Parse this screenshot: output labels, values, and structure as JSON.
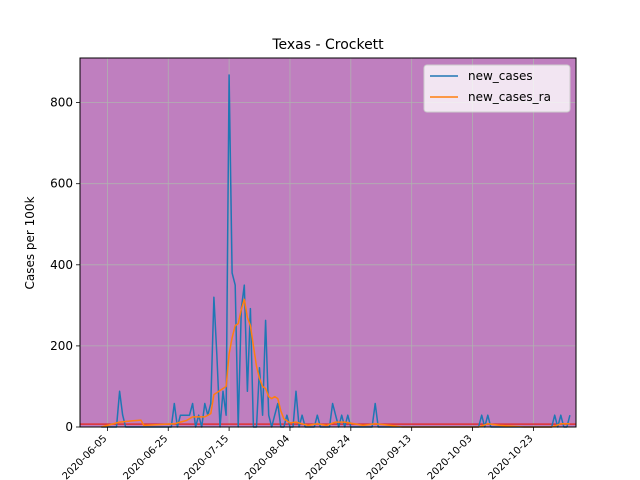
{
  "chart_data": {
    "type": "line",
    "title": "Texas - Crockett",
    "xlabel": "",
    "ylabel": "Cases per 100k",
    "xlim": [
      "2020-05-27",
      "2020-11-06"
    ],
    "ylim": [
      0,
      910
    ],
    "grid": true,
    "legend_position": "top-right",
    "background_color": "#bf7fbf",
    "threshold_line": {
      "value": 7,
      "color": "#e03030"
    },
    "x_ticks": [
      "2020-06-05",
      "2020-06-25",
      "2020-07-15",
      "2020-08-04",
      "2020-08-24",
      "2020-09-13",
      "2020-10-03",
      "2020-10-23"
    ],
    "y_ticks": [
      0,
      200,
      400,
      600,
      800
    ],
    "series": [
      {
        "name": "new_cases",
        "color": "#1f77b4",
        "points": [
          [
            "2020-06-03",
            0
          ],
          [
            "2020-06-08",
            0
          ],
          [
            "2020-06-09",
            88
          ],
          [
            "2020-06-10",
            30
          ],
          [
            "2020-06-11",
            0
          ],
          [
            "2020-06-26",
            0
          ],
          [
            "2020-06-27",
            58
          ],
          [
            "2020-06-28",
            0
          ],
          [
            "2020-06-29",
            29
          ],
          [
            "2020-06-30",
            29
          ],
          [
            "2020-07-01",
            29
          ],
          [
            "2020-07-02",
            29
          ],
          [
            "2020-07-03",
            58
          ],
          [
            "2020-07-04",
            0
          ],
          [
            "2020-07-05",
            29
          ],
          [
            "2020-07-06",
            0
          ],
          [
            "2020-07-07",
            58
          ],
          [
            "2020-07-08",
            29
          ],
          [
            "2020-07-09",
            58
          ],
          [
            "2020-07-10",
            320
          ],
          [
            "2020-07-11",
            175
          ],
          [
            "2020-07-12",
            0
          ],
          [
            "2020-07-13",
            88
          ],
          [
            "2020-07-14",
            29
          ],
          [
            "2020-07-15",
            868
          ],
          [
            "2020-07-16",
            380
          ],
          [
            "2020-07-17",
            350
          ],
          [
            "2020-07-18",
            0
          ],
          [
            "2020-07-19",
            292
          ],
          [
            "2020-07-20",
            350
          ],
          [
            "2020-07-21",
            88
          ],
          [
            "2020-07-22",
            292
          ],
          [
            "2020-07-23",
            0
          ],
          [
            "2020-07-24",
            0
          ],
          [
            "2020-07-25",
            146
          ],
          [
            "2020-07-26",
            29
          ],
          [
            "2020-07-27",
            263
          ],
          [
            "2020-07-28",
            29
          ],
          [
            "2020-07-29",
            0
          ],
          [
            "2020-07-30",
            29
          ],
          [
            "2020-07-31",
            58
          ],
          [
            "2020-08-01",
            0
          ],
          [
            "2020-08-02",
            0
          ],
          [
            "2020-08-03",
            29
          ],
          [
            "2020-08-04",
            0
          ],
          [
            "2020-08-05",
            0
          ],
          [
            "2020-08-06",
            88
          ],
          [
            "2020-08-07",
            0
          ],
          [
            "2020-08-08",
            29
          ],
          [
            "2020-08-09",
            0
          ],
          [
            "2020-08-12",
            0
          ],
          [
            "2020-08-13",
            29
          ],
          [
            "2020-08-14",
            0
          ],
          [
            "2020-08-17",
            0
          ],
          [
            "2020-08-18",
            58
          ],
          [
            "2020-08-19",
            29
          ],
          [
            "2020-08-20",
            0
          ],
          [
            "2020-08-21",
            29
          ],
          [
            "2020-08-22",
            0
          ],
          [
            "2020-08-23",
            29
          ],
          [
            "2020-08-24",
            0
          ],
          [
            "2020-08-31",
            0
          ],
          [
            "2020-09-01",
            58
          ],
          [
            "2020-09-02",
            0
          ],
          [
            "2020-10-05",
            0
          ],
          [
            "2020-10-06",
            29
          ],
          [
            "2020-10-07",
            0
          ],
          [
            "2020-10-08",
            29
          ],
          [
            "2020-10-09",
            0
          ],
          [
            "2020-10-29",
            0
          ],
          [
            "2020-10-30",
            29
          ],
          [
            "2020-10-31",
            0
          ],
          [
            "2020-11-01",
            29
          ],
          [
            "2020-11-02",
            0
          ],
          [
            "2020-11-03",
            0
          ],
          [
            "2020-11-04",
            29
          ]
        ]
      },
      {
        "name": "new_cases_ra",
        "color": "#ff7f0e",
        "points": [
          [
            "2020-06-03",
            0
          ],
          [
            "2020-06-09",
            12
          ],
          [
            "2020-06-13",
            15
          ],
          [
            "2020-06-16",
            17
          ],
          [
            "2020-06-17",
            4
          ],
          [
            "2020-06-27",
            8
          ],
          [
            "2020-06-29",
            12
          ],
          [
            "2020-07-01",
            16
          ],
          [
            "2020-07-03",
            25
          ],
          [
            "2020-07-05",
            25
          ],
          [
            "2020-07-07",
            25
          ],
          [
            "2020-07-09",
            33
          ],
          [
            "2020-07-10",
            80
          ],
          [
            "2020-07-12",
            90
          ],
          [
            "2020-07-14",
            100
          ],
          [
            "2020-07-15",
            180
          ],
          [
            "2020-07-16",
            220
          ],
          [
            "2020-07-17",
            250
          ],
          [
            "2020-07-18",
            255
          ],
          [
            "2020-07-19",
            290
          ],
          [
            "2020-07-20",
            315
          ],
          [
            "2020-07-21",
            270
          ],
          [
            "2020-07-22",
            250
          ],
          [
            "2020-07-23",
            200
          ],
          [
            "2020-07-24",
            150
          ],
          [
            "2020-07-25",
            120
          ],
          [
            "2020-07-26",
            100
          ],
          [
            "2020-07-27",
            95
          ],
          [
            "2020-07-28",
            75
          ],
          [
            "2020-07-29",
            70
          ],
          [
            "2020-07-30",
            75
          ],
          [
            "2020-07-31",
            70
          ],
          [
            "2020-08-01",
            40
          ],
          [
            "2020-08-02",
            20
          ],
          [
            "2020-08-04",
            10
          ],
          [
            "2020-08-06",
            12
          ],
          [
            "2020-08-08",
            8
          ],
          [
            "2020-08-10",
            4
          ],
          [
            "2020-08-13",
            8
          ],
          [
            "2020-08-16",
            4
          ],
          [
            "2020-08-19",
            12
          ],
          [
            "2020-08-22",
            12
          ],
          [
            "2020-08-25",
            8
          ],
          [
            "2020-08-28",
            4
          ],
          [
            "2020-09-01",
            8
          ],
          [
            "2020-09-06",
            4
          ],
          [
            "2020-09-10",
            0
          ],
          [
            "2020-10-05",
            0
          ],
          [
            "2020-10-08",
            8
          ],
          [
            "2020-10-12",
            4
          ],
          [
            "2020-10-20",
            0
          ],
          [
            "2020-10-29",
            0
          ],
          [
            "2020-11-01",
            8
          ],
          [
            "2020-11-04",
            8
          ]
        ]
      }
    ]
  }
}
